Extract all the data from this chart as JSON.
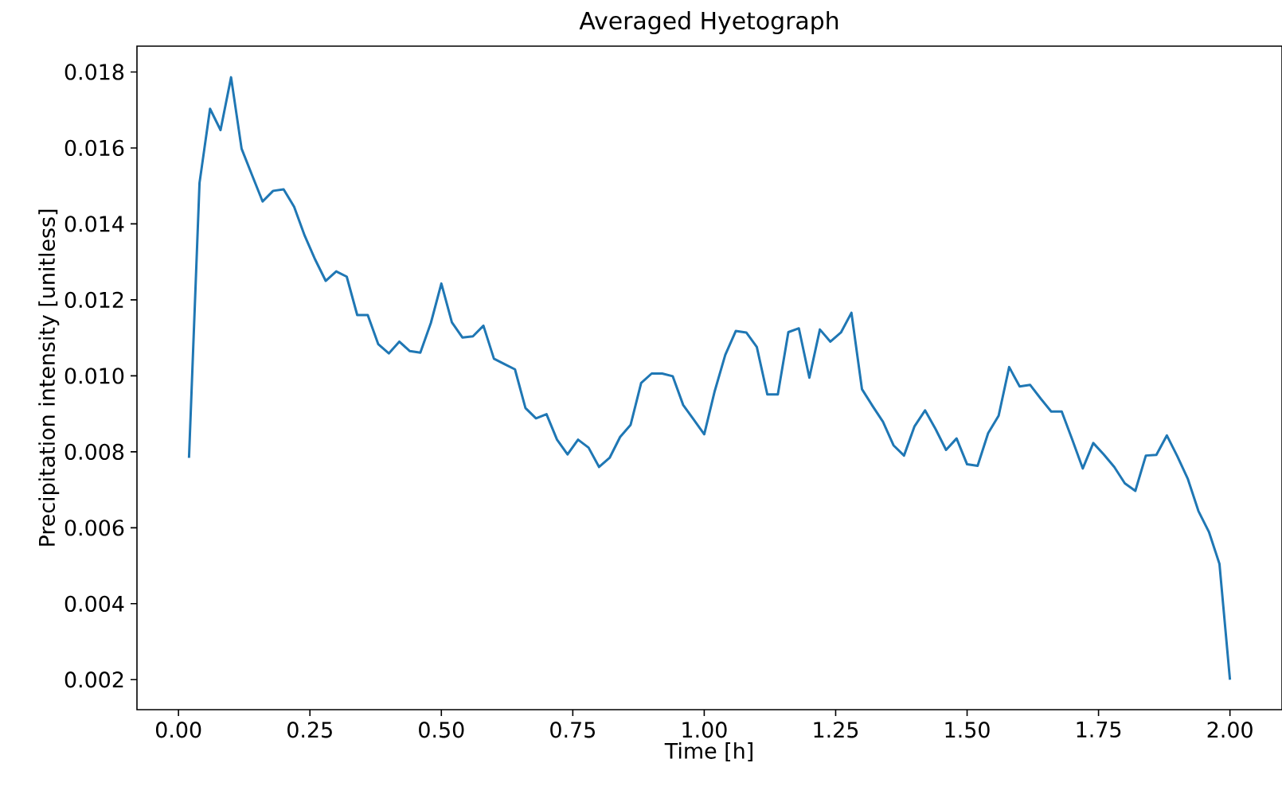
{
  "chart_data": {
    "type": "line",
    "title": "Averaged Hyetograph",
    "xlabel": "Time [h]",
    "ylabel": "Precipitation intensity [unitless]",
    "xlim": [
      -0.079,
      2.099
    ],
    "ylim": [
      0.00121,
      0.01868
    ],
    "xticks": [
      {
        "value": 0,
        "label": "0.00"
      },
      {
        "value": 0.25,
        "label": "0.25"
      },
      {
        "value": 0.5,
        "label": "0.50"
      },
      {
        "value": 0.75,
        "label": "0.75"
      },
      {
        "value": 1.0,
        "label": "1.00"
      },
      {
        "value": 1.25,
        "label": "1.25"
      },
      {
        "value": 1.5,
        "label": "1.50"
      },
      {
        "value": 1.75,
        "label": "1.75"
      },
      {
        "value": 2.0,
        "label": "2.00"
      }
    ],
    "yticks": [
      0.002,
      0.004,
      0.006,
      0.008,
      {
        "value": 0.01,
        "label": "0.010"
      },
      0.012,
      0.014,
      0.016,
      0.018
    ],
    "x": [
      0.02,
      0.04,
      0.06,
      0.08,
      0.1,
      0.12,
      0.14,
      0.16,
      0.18,
      0.2,
      0.22,
      0.24,
      0.26,
      0.28,
      0.3,
      0.32,
      0.34,
      0.36,
      0.38,
      0.4,
      0.42,
      0.44,
      0.46,
      0.48,
      0.5,
      0.52,
      0.54,
      0.56,
      0.58,
      0.6,
      0.62,
      0.64,
      0.66,
      0.68,
      0.7,
      0.72,
      0.74,
      0.76,
      0.78,
      0.8,
      0.82,
      0.84,
      0.86,
      0.88,
      0.9,
      0.92,
      0.94,
      0.96,
      0.98,
      1.0,
      1.02,
      1.04,
      1.06,
      1.08,
      1.1,
      1.12,
      1.14,
      1.16,
      1.18,
      1.2,
      1.22,
      1.24,
      1.26,
      1.28,
      1.3,
      1.32,
      1.34,
      1.36,
      1.38,
      1.4,
      1.42,
      1.44,
      1.46,
      1.48,
      1.5,
      1.52,
      1.54,
      1.56,
      1.58,
      1.6,
      1.62,
      1.64,
      1.66,
      1.68,
      1.7,
      1.72,
      1.74,
      1.76,
      1.78,
      1.8,
      1.82,
      1.84,
      1.86,
      1.88,
      1.9,
      1.92,
      1.94,
      1.96,
      1.98,
      2.0
    ],
    "series": [
      {
        "color": "#1f77b4",
        "values": [
          0.00784,
          0.01508,
          0.01703,
          0.01647,
          0.01786,
          0.01598,
          0.01528,
          0.01459,
          0.01487,
          0.01491,
          0.01445,
          0.01369,
          0.01306,
          0.0125,
          0.01275,
          0.01261,
          0.0116,
          0.0116,
          0.01083,
          0.01059,
          0.0109,
          0.01065,
          0.01061,
          0.01139,
          0.01243,
          0.01141,
          0.01101,
          0.01104,
          0.01132,
          0.01045,
          0.01031,
          0.01017,
          0.00915,
          0.00888,
          0.00899,
          0.00832,
          0.00793,
          0.00832,
          0.00811,
          0.0076,
          0.00784,
          0.00839,
          0.00871,
          0.00981,
          0.01006,
          0.01006,
          0.00999,
          0.00923,
          0.00885,
          0.00846,
          0.0096,
          0.01055,
          0.01118,
          0.01114,
          0.01076,
          0.00951,
          0.00951,
          0.01115,
          0.01125,
          0.00995,
          0.01122,
          0.0109,
          0.01114,
          0.01166,
          0.00965,
          0.00921,
          0.00879,
          0.00817,
          0.0079,
          0.00867,
          0.00909,
          0.0086,
          0.00805,
          0.00835,
          0.00767,
          0.00763,
          0.00849,
          0.00895,
          0.01023,
          0.00972,
          0.00976,
          0.0094,
          0.00906,
          0.00906,
          0.00832,
          0.00756,
          0.00823,
          0.00793,
          0.0076,
          0.00717,
          0.00697,
          0.0079,
          0.00792,
          0.00843,
          0.00788,
          0.00728,
          0.00644,
          0.00589,
          0.00505,
          0.002
        ]
      }
    ]
  }
}
